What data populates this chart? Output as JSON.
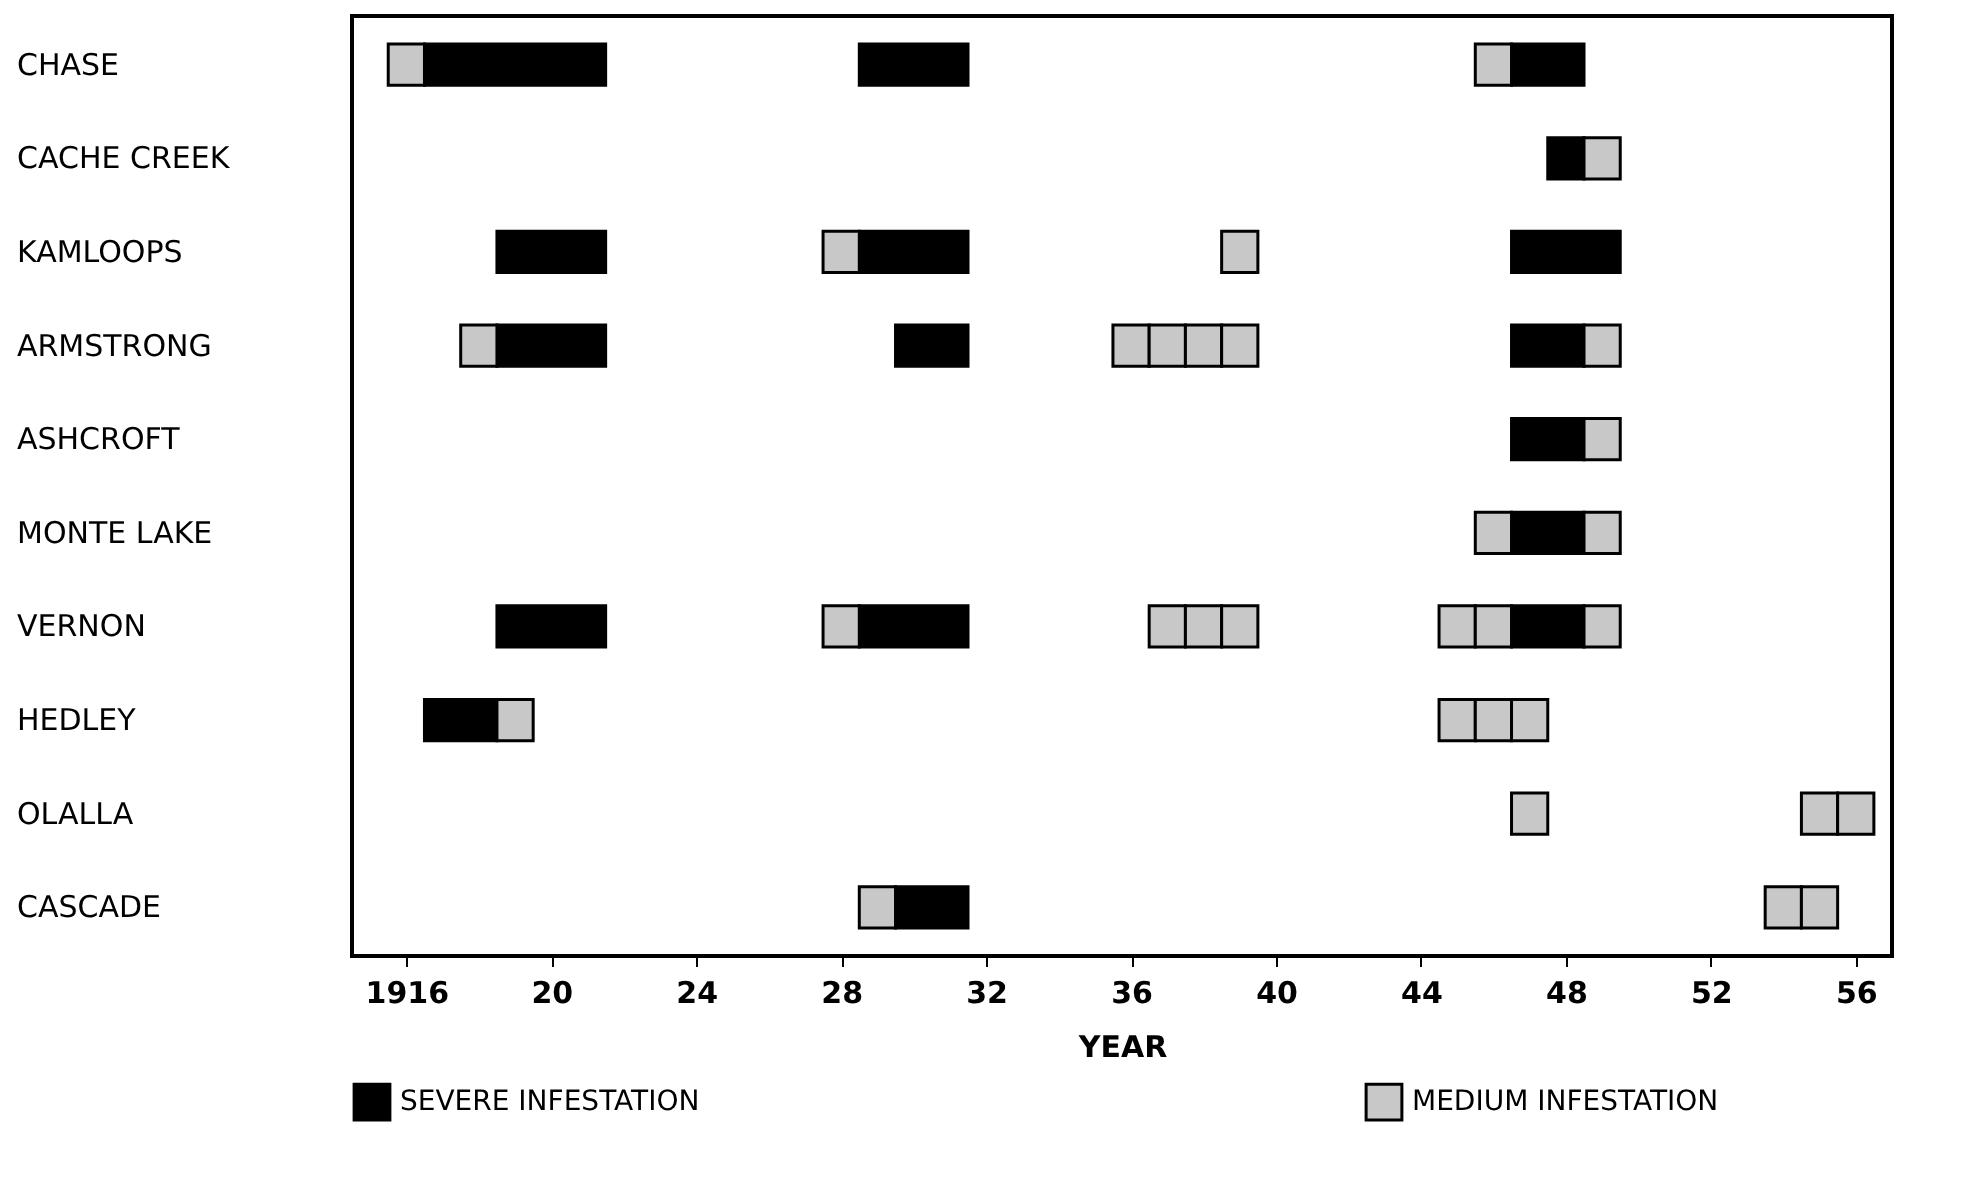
{
  "chart_data": {
    "type": "bar",
    "orientation": "horizontal",
    "xlabel": "YEAR",
    "legend": "bottom",
    "categories": [
      "CHASE",
      "CACHE CREEK",
      "KAMLOOPS",
      "ARMSTRONG",
      "ASHCROFT",
      "MONTE LAKE",
      "VERNON",
      "HEDLEY",
      "OLALLA",
      "CASCADE"
    ],
    "xlim": [
      1914.5,
      1957
    ],
    "xticks": [
      1916,
      {
        "value": 1920,
        "label": "20"
      },
      {
        "value": 1924,
        "label": "24"
      },
      {
        "value": 1928,
        "label": "28"
      },
      {
        "value": 1932,
        "label": "32"
      },
      {
        "value": 1936,
        "label": "36"
      },
      {
        "value": 1940,
        "label": "40"
      },
      {
        "value": 1944,
        "label": "44"
      },
      {
        "value": 1948,
        "label": "48"
      },
      {
        "value": 1952,
        "label": "52"
      },
      {
        "value": 1956,
        "label": "56"
      }
    ],
    "series": [
      {
        "name": "SEVERE INFESTATION",
        "color": "#000000",
        "values": [
          5,
          null,
          3,
          3,
          null,
          null,
          3,
          2,
          null,
          null
        ],
        "base": [
          1916.5,
          null,
          1918.5,
          1918.5,
          null,
          null,
          1918.5,
          1916.5,
          null,
          null
        ]
      },
      {
        "color": "#000000",
        "values": [
          3,
          null,
          3,
          2,
          null,
          null,
          3,
          null,
          null,
          2
        ],
        "base": [
          1928.5,
          null,
          1928.5,
          1929.5,
          null,
          null,
          1928.5,
          null,
          null,
          1929.5
        ]
      },
      {
        "color": "#000000",
        "values": [
          2,
          1,
          3,
          2,
          2,
          2,
          2,
          null,
          null,
          null
        ],
        "base": [
          1946.5,
          1947.5,
          1946.5,
          1946.5,
          1946.5,
          1946.5,
          1946.5,
          null,
          null,
          null
        ]
      },
      {
        "name": "MEDIUM INFESTATION",
        "color": "#c8c8c8",
        "values": [
          1,
          1,
          1,
          1,
          1,
          1,
          1,
          1,
          1,
          1
        ],
        "base": [
          1915.5,
          1948.5,
          1927.5,
          1917.5,
          1948.5,
          1945.5,
          1927.5,
          1918.5,
          1946.5,
          1928.5
        ]
      },
      {
        "color": "#c8c8c8",
        "values": [
          1,
          null,
          1,
          1,
          null,
          1,
          1,
          1,
          1,
          1
        ],
        "base": [
          1945.5,
          null,
          1938.5,
          1935.5,
          null,
          1948.5,
          1936.5,
          1944.5,
          1954.5,
          1953.5
        ]
      },
      {
        "color": "#c8c8c8",
        "values": [
          null,
          null,
          null,
          1,
          null,
          null,
          1,
          1,
          1,
          1
        ],
        "base": [
          null,
          null,
          null,
          1936.5,
          null,
          null,
          1937.5,
          1945.5,
          1955.5,
          1954.5
        ]
      },
      {
        "color": "#c8c8c8",
        "values": [
          null,
          null,
          null,
          1,
          null,
          null,
          1,
          1,
          null,
          null
        ],
        "base": [
          null,
          null,
          null,
          1937.5,
          null,
          null,
          1938.5,
          1946.5,
          null,
          null
        ]
      },
      {
        "color": "#c8c8c8",
        "values": [
          null,
          null,
          null,
          1,
          null,
          null,
          1,
          null,
          null,
          null
        ],
        "base": [
          null,
          null,
          null,
          1938.5,
          null,
          null,
          1944.5,
          null,
          null,
          null
        ]
      },
      {
        "color": "#c8c8c8",
        "values": [
          null,
          null,
          null,
          1,
          null,
          null,
          1,
          null,
          null,
          null
        ],
        "base": [
          null,
          null,
          null,
          1948.5,
          null,
          null,
          1945.5,
          null,
          null,
          null
        ]
      },
      {
        "color": "#c8c8c8",
        "values": [
          null,
          null,
          null,
          null,
          null,
          null,
          1,
          null,
          null,
          null
        ],
        "base": [
          null,
          null,
          null,
          null,
          null,
          null,
          1948.5,
          null,
          null,
          null
        ]
      }
    ]
  }
}
